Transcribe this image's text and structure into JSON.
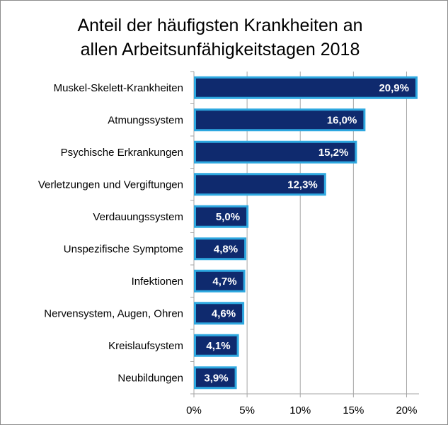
{
  "chart_data": {
    "type": "bar",
    "orientation": "horizontal",
    "title_lines": [
      "Anteil der häufigsten Krankheiten an",
      "allen Arbeitsunfähigkeitstagen 2018"
    ],
    "categories": [
      "Muskel-Skelett-Krankheiten",
      "Atmungssystem",
      "Psychische Erkrankungen",
      "Verletzungen und Vergiftungen",
      "Verdauungssystem",
      "Unspezifische Symptome",
      "Infektionen",
      "Nervensystem, Augen, Ohren",
      "Kreislaufsystem",
      "Neubildungen"
    ],
    "values": [
      20.9,
      16.0,
      15.2,
      12.3,
      5.0,
      4.8,
      4.7,
      4.6,
      4.1,
      3.9
    ],
    "data_labels": [
      "20,9%",
      "16,0%",
      "15,2%",
      "12,3%",
      "5,0%",
      "4,8%",
      "4,7%",
      "4,6%",
      "4,1%",
      "3,9%"
    ],
    "xlim": [
      0,
      21.1
    ],
    "xticks": [
      0,
      5,
      10,
      15,
      20
    ],
    "xtick_labels": [
      "0%",
      "5%",
      "10%",
      "15%",
      "20%"
    ],
    "grid": "vertical",
    "legend": "none",
    "colors": {
      "bar_fill": "#0f2a6e",
      "bar_border": "#2ea8e0",
      "grid": "#a6a6a6"
    }
  }
}
